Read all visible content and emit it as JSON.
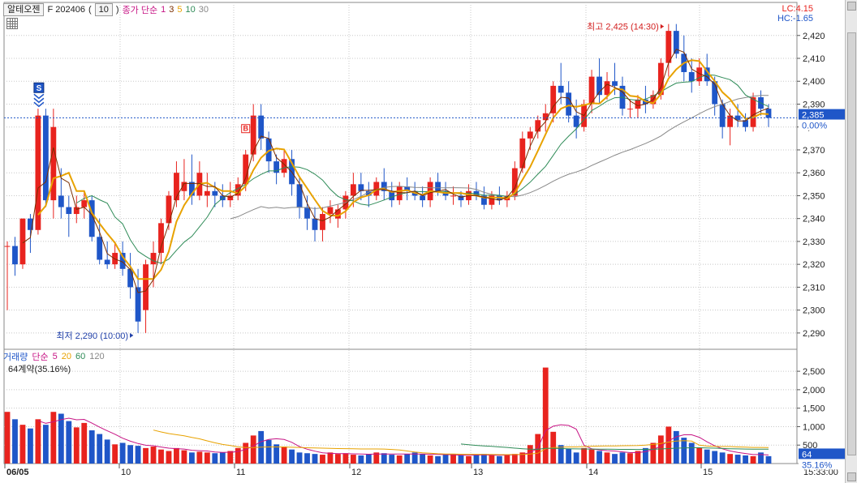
{
  "header": {
    "symbol": "알테오젠",
    "contract": "F 202406",
    "period": "10",
    "indicator_label": "종가 단순",
    "ma_periods": [
      "1",
      "3",
      "5",
      "10",
      "30"
    ],
    "ma_colors": [
      "#c71585",
      "#7a2e00",
      "#e8a200",
      "#2e8b57",
      "#888888"
    ]
  },
  "right_info": {
    "lc": "LC:4.15",
    "hc": "HC:-1.65"
  },
  "annotations": {
    "high": "최고 2,425 (14:30)",
    "low": "최저 2,290 (10:00)",
    "sell_marker": "S",
    "buy_marker": "B"
  },
  "current": {
    "price": "2,385",
    "change": "0.00%",
    "volume": "64",
    "vol_pct": "35.16%"
  },
  "volume_header": {
    "label": "거래량",
    "ma_label": "단순",
    "ma_periods": [
      "5",
      "20",
      "60",
      "120"
    ],
    "ma_colors": [
      "#c71585",
      "#e8a200",
      "#2e8b57",
      "#888888"
    ],
    "subtitle": "64계약(35.16%)"
  },
  "time_axis": {
    "labels": [
      "06/05",
      "10",
      "11",
      "12",
      "13",
      "14",
      "15"
    ],
    "clock": "15:33:00"
  },
  "colors": {
    "up": "#e8231e",
    "down": "#1f56c8"
  },
  "chart_data": {
    "type": "candlestick",
    "price_ticks": [
      2290,
      2300,
      2310,
      2320,
      2330,
      2340,
      2350,
      2360,
      2370,
      2380,
      2390,
      2400,
      2410,
      2420
    ],
    "price_tick_labels": [
      "2,290",
      "2,300",
      "2,310",
      "2,320",
      "2,330",
      "2,340",
      "2,350",
      "2,360",
      "2,370",
      "2,380",
      "2,390",
      "2,400",
      "2,410",
      "2,420"
    ],
    "volume_ticks": [
      500,
      1000,
      1500,
      2000,
      2500
    ],
    "volume_tick_labels": [
      "500",
      "1,000",
      "1,500",
      "2,000",
      "2,500"
    ],
    "high": {
      "value": 2425,
      "time": "14:30"
    },
    "low": {
      "value": 2290,
      "time": "10:00"
    },
    "candles": [
      [
        2328,
        2330,
        2300,
        2328
      ],
      [
        2328,
        2332,
        2315,
        2320
      ],
      [
        2320,
        2340,
        2318,
        2340
      ],
      [
        2340,
        2342,
        2325,
        2335
      ],
      [
        2335,
        2388,
        2333,
        2385
      ],
      [
        2385,
        2388,
        2345,
        2348
      ],
      [
        2348,
        2388,
        2340,
        2380
      ],
      [
        2350,
        2362,
        2340,
        2345
      ],
      [
        2345,
        2350,
        2332,
        2342
      ],
      [
        2342,
        2350,
        2338,
        2345
      ],
      [
        2345,
        2352,
        2340,
        2348
      ],
      [
        2348,
        2350,
        2330,
        2332
      ],
      [
        2332,
        2340,
        2320,
        2322
      ],
      [
        2322,
        2330,
        2318,
        2320
      ],
      [
        2320,
        2330,
        2318,
        2325
      ],
      [
        2325,
        2330,
        2315,
        2318
      ],
      [
        2318,
        2325,
        2305,
        2310
      ],
      [
        2310,
        2318,
        2290,
        2295
      ],
      [
        2300,
        2322,
        2290,
        2320
      ],
      [
        2320,
        2330,
        2310,
        2325
      ],
      [
        2325,
        2340,
        2320,
        2338
      ],
      [
        2338,
        2352,
        2335,
        2350
      ],
      [
        2348,
        2365,
        2345,
        2360
      ],
      [
        2352,
        2366,
        2348,
        2356
      ],
      [
        2356,
        2368,
        2346,
        2350
      ],
      [
        2350,
        2365,
        2348,
        2360
      ],
      [
        2350,
        2360,
        2345,
        2352
      ],
      [
        2352,
        2356,
        2345,
        2350
      ],
      [
        2350,
        2355,
        2345,
        2348
      ],
      [
        2348,
        2356,
        2345,
        2350
      ],
      [
        2350,
        2358,
        2348,
        2355
      ],
      [
        2355,
        2370,
        2352,
        2368
      ],
      [
        2368,
        2390,
        2365,
        2385
      ],
      [
        2385,
        2390,
        2370,
        2375
      ],
      [
        2375,
        2378,
        2360,
        2365
      ],
      [
        2365,
        2368,
        2355,
        2360
      ],
      [
        2360,
        2370,
        2358,
        2366
      ],
      [
        2366,
        2370,
        2350,
        2355
      ],
      [
        2355,
        2358,
        2340,
        2345
      ],
      [
        2345,
        2350,
        2335,
        2340
      ],
      [
        2340,
        2345,
        2330,
        2335
      ],
      [
        2335,
        2345,
        2330,
        2342
      ],
      [
        2342,
        2348,
        2338,
        2345
      ],
      [
        2340,
        2346,
        2336,
        2344
      ],
      [
        2344,
        2352,
        2340,
        2350
      ],
      [
        2350,
        2360,
        2345,
        2355
      ],
      [
        2355,
        2360,
        2348,
        2352
      ],
      [
        2352,
        2356,
        2345,
        2350
      ],
      [
        2350,
        2358,
        2348,
        2356
      ],
      [
        2356,
        2362,
        2348,
        2352
      ],
      [
        2352,
        2356,
        2345,
        2348
      ],
      [
        2348,
        2356,
        2346,
        2354
      ],
      [
        2354,
        2358,
        2348,
        2352
      ],
      [
        2352,
        2356,
        2348,
        2350
      ],
      [
        2350,
        2354,
        2345,
        2348
      ],
      [
        2348,
        2358,
        2345,
        2356
      ],
      [
        2356,
        2360,
        2350,
        2352
      ],
      [
        2352,
        2356,
        2348,
        2350
      ],
      [
        2350,
        2354,
        2346,
        2350
      ],
      [
        2350,
        2352,
        2345,
        2348
      ],
      [
        2348,
        2355,
        2346,
        2352
      ],
      [
        2352,
        2356,
        2348,
        2350
      ],
      [
        2350,
        2354,
        2344,
        2346
      ],
      [
        2346,
        2352,
        2344,
        2350
      ],
      [
        2350,
        2354,
        2346,
        2348
      ],
      [
        2348,
        2352,
        2345,
        2350
      ],
      [
        2350,
        2365,
        2348,
        2362
      ],
      [
        2362,
        2378,
        2360,
        2375
      ],
      [
        2375,
        2380,
        2370,
        2378
      ],
      [
        2378,
        2385,
        2375,
        2383
      ],
      [
        2383,
        2390,
        2378,
        2386
      ],
      [
        2386,
        2400,
        2382,
        2398
      ],
      [
        2398,
        2408,
        2390,
        2395
      ],
      [
        2395,
        2400,
        2382,
        2385
      ],
      [
        2385,
        2392,
        2375,
        2380
      ],
      [
        2380,
        2392,
        2378,
        2390
      ],
      [
        2390,
        2405,
        2386,
        2402
      ],
      [
        2402,
        2410,
        2390,
        2394
      ],
      [
        2394,
        2404,
        2392,
        2400
      ],
      [
        2400,
        2408,
        2394,
        2398
      ],
      [
        2398,
        2402,
        2385,
        2388
      ],
      [
        2388,
        2392,
        2384,
        2388
      ],
      [
        2388,
        2394,
        2384,
        2392
      ],
      [
        2392,
        2398,
        2386,
        2390
      ],
      [
        2390,
        2396,
        2388,
        2394
      ],
      [
        2394,
        2410,
        2392,
        2408
      ],
      [
        2408,
        2425,
        2402,
        2422
      ],
      [
        2422,
        2425,
        2410,
        2412
      ],
      [
        2412,
        2420,
        2400,
        2404
      ],
      [
        2404,
        2410,
        2395,
        2400
      ],
      [
        2400,
        2410,
        2398,
        2406
      ],
      [
        2406,
        2412,
        2398,
        2400
      ],
      [
        2400,
        2402,
        2385,
        2390
      ],
      [
        2390,
        2392,
        2375,
        2380
      ],
      [
        2380,
        2388,
        2372,
        2385
      ],
      [
        2385,
        2390,
        2380,
        2383
      ],
      [
        2383,
        2386,
        2378,
        2380
      ],
      [
        2380,
        2395,
        2378,
        2393
      ],
      [
        2393,
        2396,
        2385,
        2388
      ],
      [
        2388,
        2390,
        2380,
        2384
      ]
    ],
    "volume": [
      1400,
      1200,
      1050,
      950,
      1200,
      1050,
      1400,
      1350,
      1150,
      980,
      1100,
      900,
      800,
      650,
      520,
      560,
      500,
      480,
      420,
      460,
      380,
      340,
      420,
      360,
      300,
      320,
      300,
      280,
      300,
      340,
      420,
      560,
      760,
      880,
      640,
      520,
      460,
      380,
      300,
      280,
      260,
      240,
      300,
      260,
      280,
      240,
      220,
      260,
      300,
      280,
      240,
      220,
      260,
      300,
      260,
      220,
      200,
      240,
      260,
      220,
      200,
      240,
      260,
      220,
      200,
      240,
      260,
      300,
      500,
      800,
      2600,
      860,
      500,
      400,
      300,
      420,
      380,
      340,
      300,
      260,
      300,
      280,
      340,
      420,
      560,
      760,
      1000,
      880,
      700,
      560,
      420,
      380,
      340,
      300,
      260,
      240,
      220,
      200,
      300,
      200
    ]
  }
}
